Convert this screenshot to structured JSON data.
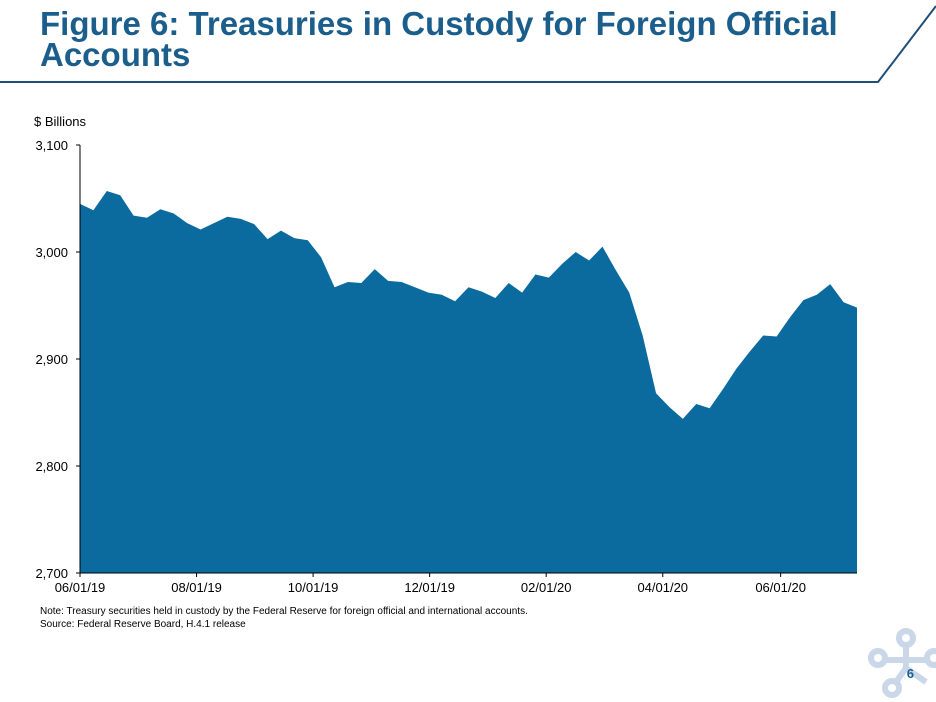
{
  "slide": {
    "title": "Figure 6: Treasuries in Custody for Foreign Official Accounts",
    "unit_label": "$ Billions",
    "note": "Note: Treasury securities held in custody by the Federal Reserve for foreign official and international accounts.",
    "source": "Source: Federal Reserve Board, H.4.1 release",
    "page_number": "6"
  },
  "colors": {
    "title": "#1b5e8c",
    "area_fill": "#0b6a9e",
    "header_rule": "#1f4e79",
    "logo": "#c9d7e8"
  },
  "chart_data": {
    "type": "area",
    "title": "",
    "xlabel": "",
    "ylabel": "$ Billions",
    "ylim": [
      2700,
      3100
    ],
    "yticks": [
      2700,
      2800,
      2900,
      3000,
      3100
    ],
    "ytick_labels": [
      "2,700",
      "2,800",
      "2,900",
      "3,000",
      "3,100"
    ],
    "xtick_labels": [
      "06/01/19",
      "08/01/19",
      "10/01/19",
      "12/01/19",
      "02/01/20",
      "04/01/20",
      "06/01/20"
    ],
    "grid": false,
    "legend": "none",
    "series": [
      {
        "values": [
          3045,
          3039,
          3057,
          3053,
          3034,
          3032,
          3040,
          3036,
          3027,
          3021,
          3027,
          3033,
          3031,
          3026,
          3012,
          3020,
          3013,
          3011,
          2995,
          2967,
          2972,
          2971,
          2984,
          2973,
          2972,
          2967,
          2962,
          2960,
          2954,
          2967,
          2963,
          2957,
          2971,
          2962,
          2979,
          2976,
          2989,
          3000,
          2992,
          3005,
          2983,
          2962,
          2922,
          2868,
          2855,
          2844,
          2858,
          2854,
          2872,
          2891,
          2907,
          2922,
          2921,
          2939,
          2955,
          2960,
          2970,
          2953,
          2948
        ]
      }
    ]
  }
}
